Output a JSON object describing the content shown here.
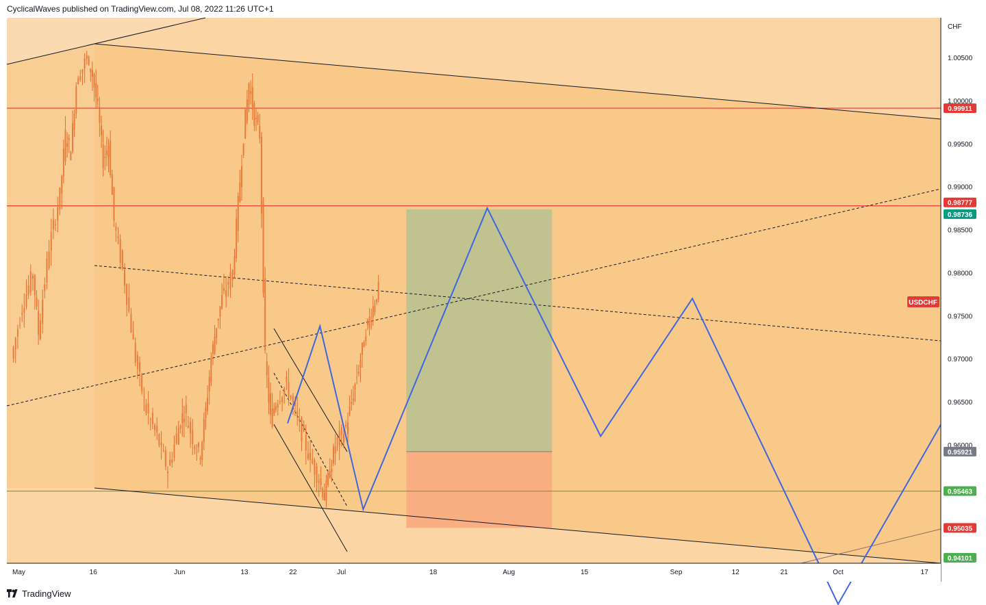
{
  "header": {
    "publisher_line": "CyclicalWaves published on TradingView.com, Jul 08, 2022 11:26 UTC+1"
  },
  "footer": {
    "brand": "TradingView"
  },
  "colors": {
    "background_zone": "#fbd5a4",
    "inner_zone": "#f9c98a",
    "candle": "#ea7b3a",
    "projection": "#3d66e0",
    "resistance": "#e53935",
    "support": "#4caf50",
    "target": "#b9c190",
    "stop": "#f8ab80"
  },
  "chart_data": {
    "type": "candlestick",
    "symbol": "USDCHF",
    "currency_label": "CHF",
    "y_range": [
      0.9415,
      1.0095
    ],
    "y_ticks": [
      "1.00500",
      "1.00000",
      "0.99500",
      "0.99000",
      "0.98500",
      "0.98000",
      "0.97500",
      "0.97000",
      "0.96500",
      "0.96000"
    ],
    "x_ticks": [
      {
        "label": "May",
        "date": "2022-05-01"
      },
      {
        "label": "16",
        "date": "2022-05-16"
      },
      {
        "label": "Jun",
        "date": "2022-06-01"
      },
      {
        "label": "13",
        "date": "2022-06-13"
      },
      {
        "label": "22",
        "date": "2022-06-22"
      },
      {
        "label": "Jul",
        "date": "2022-07-01"
      },
      {
        "label": "18",
        "date": "2022-07-18"
      },
      {
        "label": "Aug",
        "date": "2022-08-01"
      },
      {
        "label": "15",
        "date": "2022-08-15"
      },
      {
        "label": "Sep",
        "date": "2022-09-01"
      },
      {
        "label": "12",
        "date": "2022-09-12"
      },
      {
        "label": "21",
        "date": "2022-09-21"
      },
      {
        "label": "Oct",
        "date": "2022-10-01"
      },
      {
        "label": "17",
        "date": "2022-10-17"
      }
    ],
    "price_path": [
      [
        "2022-05-01",
        0.97
      ],
      [
        "2022-05-03",
        0.976
      ],
      [
        "2022-05-05",
        0.98
      ],
      [
        "2022-05-06",
        0.973
      ],
      [
        "2022-05-08",
        0.983
      ],
      [
        "2022-05-10",
        0.989
      ],
      [
        "2022-05-11",
        0.996
      ],
      [
        "2022-05-12",
        0.994
      ],
      [
        "2022-05-13",
        1.002
      ],
      [
        "2022-05-15",
        1.005
      ],
      [
        "2022-05-16",
        1.003
      ],
      [
        "2022-05-17",
        0.999
      ],
      [
        "2022-05-18",
        0.993
      ],
      [
        "2022-05-19",
        0.995
      ],
      [
        "2022-05-20",
        0.986
      ],
      [
        "2022-05-22",
        0.979
      ],
      [
        "2022-05-24",
        0.97
      ],
      [
        "2022-05-26",
        0.964
      ],
      [
        "2022-05-28",
        0.961
      ],
      [
        "2022-05-30",
        0.957
      ],
      [
        "2022-06-01",
        0.962
      ],
      [
        "2022-06-02",
        0.964
      ],
      [
        "2022-06-04",
        0.96
      ],
      [
        "2022-06-05",
        0.959
      ],
      [
        "2022-06-06",
        0.964
      ],
      [
        "2022-06-07",
        0.97
      ],
      [
        "2022-06-08",
        0.974
      ],
      [
        "2022-06-09",
        0.977
      ],
      [
        "2022-06-11",
        0.98
      ],
      [
        "2022-06-12",
        0.988
      ],
      [
        "2022-06-13",
        0.996
      ],
      [
        "2022-06-14",
        1.002
      ],
      [
        "2022-06-15",
        0.998
      ],
      [
        "2022-06-16",
        0.996
      ],
      [
        "2022-06-17",
        0.97
      ],
      [
        "2022-06-18",
        0.963
      ],
      [
        "2022-06-19",
        0.965
      ],
      [
        "2022-06-21",
        0.967
      ],
      [
        "2022-06-23",
        0.963
      ],
      [
        "2022-06-25",
        0.959
      ],
      [
        "2022-06-27",
        0.956
      ],
      [
        "2022-06-28",
        0.954
      ],
      [
        "2022-06-29",
        0.957
      ],
      [
        "2022-06-30",
        0.96
      ],
      [
        "2022-07-02",
        0.962
      ],
      [
        "2022-07-03",
        0.965
      ],
      [
        "2022-07-04",
        0.968
      ],
      [
        "2022-07-05",
        0.971
      ],
      [
        "2022-07-06",
        0.974
      ],
      [
        "2022-07-07",
        0.976
      ],
      [
        "2022-07-08",
        0.978
      ]
    ],
    "projection_path": [
      [
        "2022-06-21",
        0.9625
      ],
      [
        "2022-06-27",
        0.9738
      ],
      [
        "2022-07-05",
        0.9525
      ],
      [
        "2022-07-28",
        0.9875
      ],
      [
        "2022-08-18",
        0.961
      ],
      [
        "2022-09-04",
        0.977
      ],
      [
        "2022-10-01",
        0.9415
      ],
      [
        "2022-10-22",
        0.9645
      ]
    ],
    "horizontal_levels": [
      {
        "value": "0.99911",
        "color": "#e53935"
      },
      {
        "value": "0.98777",
        "color": "#e53935"
      },
      {
        "value": "0.95463",
        "color": "#4caf50"
      }
    ],
    "price_labels": [
      {
        "text": "0.99911",
        "bg": "#e53935"
      },
      {
        "text": "0.98777",
        "bg": "#e53935"
      },
      {
        "text": "0.98736",
        "bg": "#089981"
      },
      {
        "text": "0.95921",
        "bg": "#787b86"
      },
      {
        "text": "0.95463",
        "bg": "#4caf50"
      },
      {
        "text": "0.95035",
        "bg": "#e53935"
      },
      {
        "text": "0.94101",
        "bg": "#4caf50"
      }
    ],
    "position": {
      "entry": "0.95921",
      "target": "0.98736",
      "stop": "0.95035",
      "start": "2022-07-13",
      "end": "2022-08-09"
    },
    "symbol_badge": "USDCHF"
  }
}
